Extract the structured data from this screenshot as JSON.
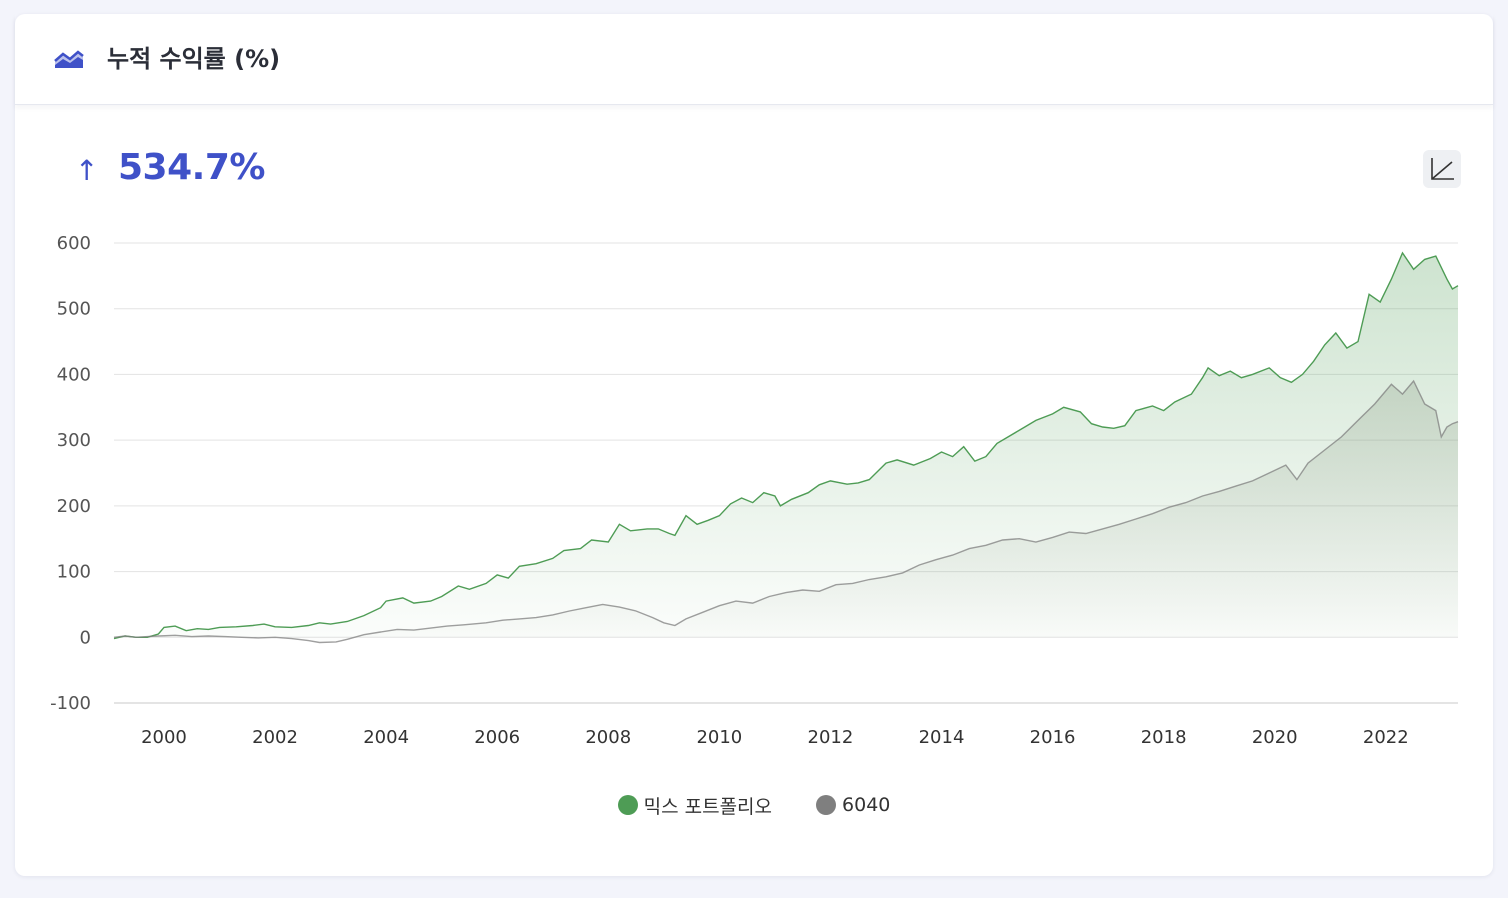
{
  "header": {
    "title": "누적 수익률 (%)",
    "icon": "area-chart-icon"
  },
  "summary": {
    "arrow": "↑",
    "value": "534.7%"
  },
  "controls": {
    "scale_toggle_icon": "chart-scale-icon"
  },
  "colors": {
    "accent": "#3f51c8",
    "mix": "#4e9c55",
    "6040": "#7f7f7f",
    "grid": "#e3e3e3"
  },
  "chart_data": {
    "type": "area",
    "title": "",
    "xlabel": "",
    "ylabel": "",
    "xlim": [
      1999.1,
      2023.3
    ],
    "ylim": [
      -100,
      600
    ],
    "y_ticks": [
      "-100",
      "0",
      "100",
      "200",
      "300",
      "400",
      "500",
      "600"
    ],
    "x_ticks": [
      "2000",
      "2002",
      "2004",
      "2006",
      "2008",
      "2010",
      "2012",
      "2014",
      "2016",
      "2018",
      "2020",
      "2022"
    ],
    "grid": true,
    "legend_position": "bottom-center",
    "series": [
      {
        "name": "믹스 포트폴리오",
        "color": "#4e9c55",
        "points": [
          [
            1999.1,
            -2
          ],
          [
            1999.3,
            2
          ],
          [
            1999.5,
            0
          ],
          [
            1999.7,
            0
          ],
          [
            1999.9,
            5
          ],
          [
            2000.0,
            15
          ],
          [
            2000.2,
            17
          ],
          [
            2000.4,
            10
          ],
          [
            2000.6,
            13
          ],
          [
            2000.8,
            12
          ],
          [
            2001.0,
            15
          ],
          [
            2001.3,
            16
          ],
          [
            2001.6,
            18
          ],
          [
            2001.8,
            20
          ],
          [
            2002.0,
            16
          ],
          [
            2002.3,
            15
          ],
          [
            2002.6,
            18
          ],
          [
            2002.8,
            22
          ],
          [
            2003.0,
            20
          ],
          [
            2003.3,
            24
          ],
          [
            2003.6,
            33
          ],
          [
            2003.9,
            45
          ],
          [
            2004.0,
            55
          ],
          [
            2004.3,
            60
          ],
          [
            2004.5,
            52
          ],
          [
            2004.8,
            55
          ],
          [
            2005.0,
            62
          ],
          [
            2005.3,
            78
          ],
          [
            2005.5,
            73
          ],
          [
            2005.8,
            82
          ],
          [
            2006.0,
            95
          ],
          [
            2006.2,
            90
          ],
          [
            2006.4,
            108
          ],
          [
            2006.7,
            112
          ],
          [
            2007.0,
            120
          ],
          [
            2007.2,
            132
          ],
          [
            2007.5,
            135
          ],
          [
            2007.7,
            148
          ],
          [
            2008.0,
            145
          ],
          [
            2008.2,
            172
          ],
          [
            2008.4,
            162
          ],
          [
            2008.7,
            165
          ],
          [
            2008.9,
            165
          ],
          [
            2009.1,
            158
          ],
          [
            2009.2,
            155
          ],
          [
            2009.4,
            185
          ],
          [
            2009.6,
            172
          ],
          [
            2009.8,
            178
          ],
          [
            2010.0,
            185
          ],
          [
            2010.2,
            203
          ],
          [
            2010.4,
            212
          ],
          [
            2010.6,
            205
          ],
          [
            2010.8,
            220
          ],
          [
            2011.0,
            215
          ],
          [
            2011.1,
            200
          ],
          [
            2011.3,
            210
          ],
          [
            2011.6,
            220
          ],
          [
            2011.8,
            232
          ],
          [
            2012.0,
            238
          ],
          [
            2012.3,
            233
          ],
          [
            2012.5,
            235
          ],
          [
            2012.7,
            240
          ],
          [
            2013.0,
            265
          ],
          [
            2013.2,
            270
          ],
          [
            2013.5,
            262
          ],
          [
            2013.8,
            272
          ],
          [
            2014.0,
            282
          ],
          [
            2014.2,
            275
          ],
          [
            2014.4,
            290
          ],
          [
            2014.6,
            268
          ],
          [
            2014.8,
            275
          ],
          [
            2015.0,
            295
          ],
          [
            2015.2,
            305
          ],
          [
            2015.5,
            320
          ],
          [
            2015.7,
            330
          ],
          [
            2016.0,
            340
          ],
          [
            2016.2,
            350
          ],
          [
            2016.5,
            343
          ],
          [
            2016.7,
            325
          ],
          [
            2016.9,
            320
          ],
          [
            2017.1,
            318
          ],
          [
            2017.3,
            322
          ],
          [
            2017.5,
            345
          ],
          [
            2017.8,
            352
          ],
          [
            2018.0,
            345
          ],
          [
            2018.2,
            358
          ],
          [
            2018.5,
            370
          ],
          [
            2018.7,
            395
          ],
          [
            2018.8,
            410
          ],
          [
            2019.0,
            398
          ],
          [
            2019.2,
            405
          ],
          [
            2019.4,
            395
          ],
          [
            2019.6,
            400
          ],
          [
            2019.9,
            410
          ],
          [
            2020.1,
            395
          ],
          [
            2020.3,
            388
          ],
          [
            2020.5,
            400
          ],
          [
            2020.7,
            420
          ],
          [
            2020.9,
            445
          ],
          [
            2021.1,
            463
          ],
          [
            2021.3,
            440
          ],
          [
            2021.5,
            450
          ],
          [
            2021.7,
            522
          ],
          [
            2021.9,
            510
          ],
          [
            2022.1,
            545
          ],
          [
            2022.3,
            585
          ],
          [
            2022.5,
            560
          ],
          [
            2022.7,
            575
          ],
          [
            2022.9,
            580
          ],
          [
            2023.1,
            545
          ],
          [
            2023.2,
            530
          ],
          [
            2023.3,
            535
          ]
        ]
      },
      {
        "name": "6040",
        "color": "#7f7f7f",
        "points": [
          [
            1999.1,
            0
          ],
          [
            1999.3,
            2
          ],
          [
            1999.5,
            0
          ],
          [
            1999.7,
            1
          ],
          [
            1999.9,
            2
          ],
          [
            2000.2,
            3
          ],
          [
            2000.5,
            1
          ],
          [
            2000.8,
            2
          ],
          [
            2001.1,
            1
          ],
          [
            2001.4,
            0
          ],
          [
            2001.7,
            -1
          ],
          [
            2002.0,
            0
          ],
          [
            2002.3,
            -2
          ],
          [
            2002.6,
            -5
          ],
          [
            2002.8,
            -8
          ],
          [
            2003.1,
            -7
          ],
          [
            2003.3,
            -3
          ],
          [
            2003.6,
            4
          ],
          [
            2003.9,
            8
          ],
          [
            2004.2,
            12
          ],
          [
            2004.5,
            11
          ],
          [
            2004.8,
            14
          ],
          [
            2005.1,
            17
          ],
          [
            2005.4,
            19
          ],
          [
            2005.8,
            22
          ],
          [
            2006.1,
            26
          ],
          [
            2006.4,
            28
          ],
          [
            2006.7,
            30
          ],
          [
            2007.0,
            34
          ],
          [
            2007.3,
            40
          ],
          [
            2007.6,
            45
          ],
          [
            2007.9,
            50
          ],
          [
            2008.2,
            46
          ],
          [
            2008.5,
            40
          ],
          [
            2008.8,
            30
          ],
          [
            2009.0,
            22
          ],
          [
            2009.2,
            18
          ],
          [
            2009.4,
            28
          ],
          [
            2009.7,
            38
          ],
          [
            2010.0,
            48
          ],
          [
            2010.3,
            55
          ],
          [
            2010.6,
            52
          ],
          [
            2010.9,
            62
          ],
          [
            2011.2,
            68
          ],
          [
            2011.5,
            72
          ],
          [
            2011.8,
            70
          ],
          [
            2012.1,
            80
          ],
          [
            2012.4,
            82
          ],
          [
            2012.7,
            88
          ],
          [
            2013.0,
            92
          ],
          [
            2013.3,
            98
          ],
          [
            2013.6,
            110
          ],
          [
            2013.9,
            118
          ],
          [
            2014.2,
            125
          ],
          [
            2014.5,
            135
          ],
          [
            2014.8,
            140
          ],
          [
            2015.1,
            148
          ],
          [
            2015.4,
            150
          ],
          [
            2015.7,
            145
          ],
          [
            2016.0,
            152
          ],
          [
            2016.3,
            160
          ],
          [
            2016.6,
            158
          ],
          [
            2016.9,
            165
          ],
          [
            2017.2,
            172
          ],
          [
            2017.5,
            180
          ],
          [
            2017.8,
            188
          ],
          [
            2018.1,
            198
          ],
          [
            2018.4,
            205
          ],
          [
            2018.7,
            215
          ],
          [
            2019.0,
            222
          ],
          [
            2019.3,
            230
          ],
          [
            2019.6,
            238
          ],
          [
            2019.9,
            250
          ],
          [
            2020.2,
            262
          ],
          [
            2020.4,
            240
          ],
          [
            2020.6,
            265
          ],
          [
            2020.9,
            285
          ],
          [
            2021.2,
            305
          ],
          [
            2021.5,
            330
          ],
          [
            2021.8,
            355
          ],
          [
            2022.1,
            385
          ],
          [
            2022.3,
            370
          ],
          [
            2022.5,
            390
          ],
          [
            2022.7,
            355
          ],
          [
            2022.9,
            345
          ],
          [
            2023.0,
            305
          ],
          [
            2023.1,
            320
          ],
          [
            2023.2,
            325
          ],
          [
            2023.3,
            328
          ]
        ]
      }
    ]
  }
}
